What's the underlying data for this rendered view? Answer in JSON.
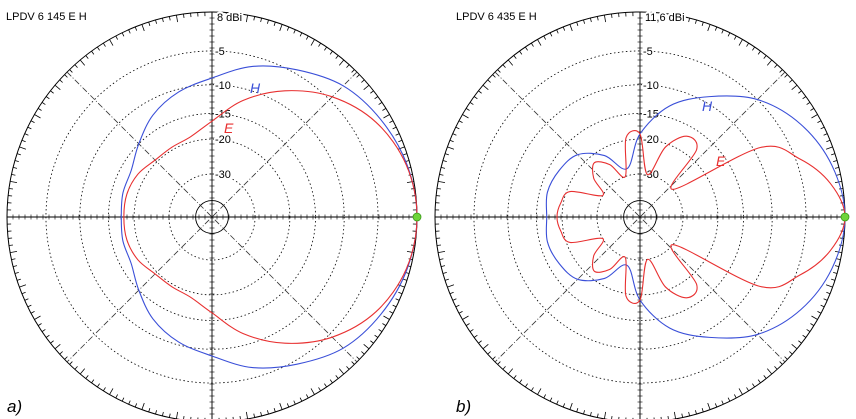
{
  "chart_data": [
    {
      "type": "polar",
      "title": "LPDV 6 145 E H",
      "caption": "a)",
      "max_gain_label": "8 dBi",
      "ring_labels": [
        "-5",
        "-10",
        "-15",
        "-20",
        "-30"
      ],
      "ring_values_db": [
        -5,
        -10,
        -15,
        -20,
        -30
      ],
      "grid": true,
      "grid_style": "dotted",
      "series": [
        {
          "name": "H",
          "color": "#3a4fd8",
          "angles_deg": [
            0,
            15,
            30,
            45,
            60,
            75,
            90,
            105,
            120,
            135,
            150,
            165,
            180,
            195,
            210,
            225,
            240,
            255,
            270,
            285,
            300,
            315,
            330,
            345
          ],
          "values_db": [
            0,
            -0.4,
            -1.3,
            -2.5,
            -4.5,
            -6.5,
            -9.0,
            -10.5,
            -12.5,
            -15.0,
            -17.0,
            -17.2,
            -17.5,
            -17.2,
            -17.0,
            -15.0,
            -12.5,
            -10.5,
            -9.0,
            -6.5,
            -4.5,
            -2.5,
            -1.3,
            -0.4
          ]
        },
        {
          "name": "E",
          "color": "#e83030",
          "angles_deg": [
            0,
            15,
            30,
            45,
            60,
            75,
            90,
            105,
            120,
            135,
            150,
            165,
            180,
            195,
            210,
            225,
            240,
            255,
            270,
            285,
            300,
            315,
            330,
            345
          ],
          "values_db": [
            0,
            -0.5,
            -2.0,
            -4.5,
            -8.0,
            -12.0,
            -16.5,
            -19.0,
            -19.5,
            -19.5,
            -18.5,
            -18.0,
            -18.0,
            -18.0,
            -18.5,
            -19.5,
            -19.5,
            -19.0,
            -16.5,
            -12.0,
            -8.0,
            -4.5,
            -2.0,
            -0.5
          ]
        }
      ]
    },
    {
      "type": "polar",
      "title": "LPDV 6 435 E H",
      "caption": "b)",
      "max_gain_label": "11,6 dBi",
      "ring_labels": [
        "-5",
        "-10",
        "-15",
        "-20",
        "-30"
      ],
      "ring_values_db": [
        -5,
        -10,
        -15,
        -20,
        -30
      ],
      "grid": true,
      "grid_style": "dotted",
      "series": [
        {
          "name": "H",
          "color": "#3a4fd8",
          "angles_deg": [
            0,
            15,
            30,
            45,
            60,
            75,
            90,
            105,
            120,
            135,
            150,
            165,
            180,
            195,
            210,
            225,
            240,
            255,
            270,
            285,
            300,
            315,
            330,
            345
          ],
          "values_db": [
            0,
            -0.8,
            -2.5,
            -5.0,
            -9.0,
            -13.0,
            -19.0,
            -28.0,
            -22.0,
            -18.0,
            -17.0,
            -16.5,
            -17.0,
            -16.5,
            -17.0,
            -18.0,
            -22.0,
            -28.0,
            -19.0,
            -13.0,
            -9.0,
            -5.0,
            -2.5,
            -0.8
          ]
        },
        {
          "name": "E",
          "color": "#e83030",
          "angles_deg": [
            0,
            10,
            20,
            30,
            40,
            50,
            60,
            70,
            80,
            90,
            100,
            110,
            120,
            130,
            140,
            150,
            160,
            170,
            180,
            190,
            200,
            210,
            220,
            230,
            240,
            250,
            260,
            270,
            280,
            290,
            300,
            310,
            320,
            330,
            340,
            350
          ],
          "values_db": [
            0,
            -1.5,
            -4.5,
            -9.0,
            -30.0,
            -18.0,
            -17.0,
            -21.0,
            -30.0,
            -19.0,
            -19.5,
            -30.0,
            -25.0,
            -22.0,
            -25.0,
            -30.0,
            -21.0,
            -19.5,
            -19.0,
            -19.5,
            -21.0,
            -30.0,
            -25.0,
            -22.0,
            -25.0,
            -30.0,
            -19.5,
            -19.0,
            -30.0,
            -21.0,
            -17.0,
            -18.0,
            -30.0,
            -9.0,
            -4.5,
            -1.5
          ]
        }
      ]
    }
  ]
}
